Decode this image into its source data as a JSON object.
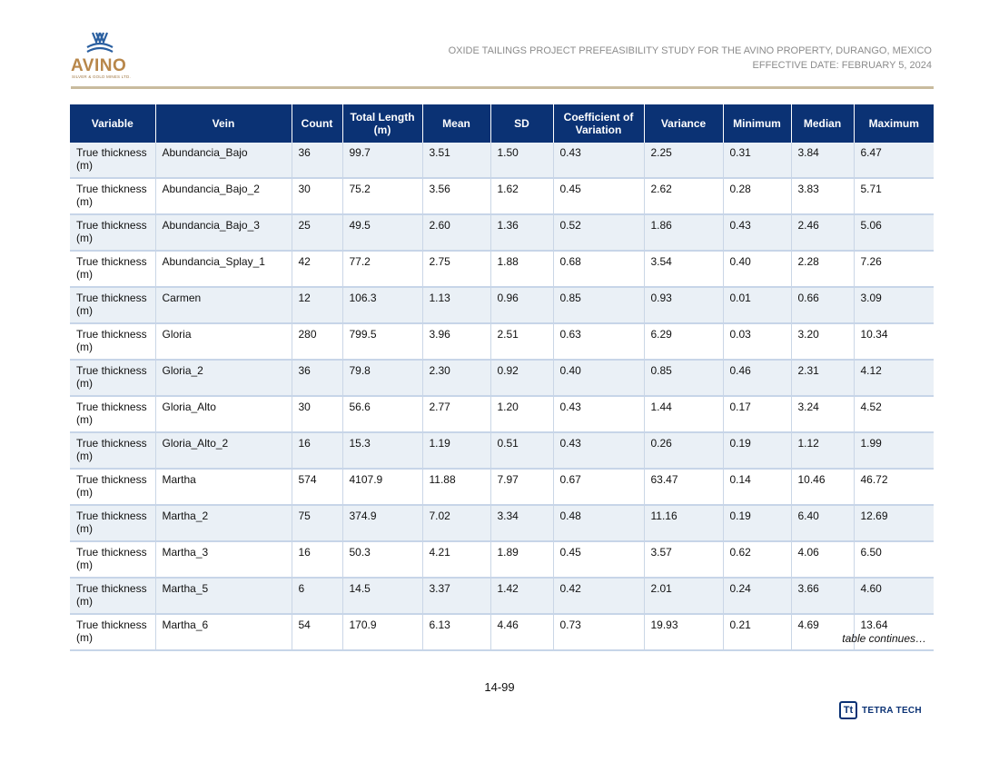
{
  "logo": {
    "name": "AVINO",
    "tagline": "SILVER & GOLD MINES LTD."
  },
  "header": {
    "line1": "OXIDE TAILINGS PROJECT PREFEASIBILITY STUDY FOR THE AVINO PROPERTY, DURANGO, MEXICO",
    "line2": "EFFECTIVE DATE: FEBRUARY 5, 2024"
  },
  "table": {
    "columns": [
      "Variable",
      "Vein",
      "Count",
      "Total Length (m)",
      "Mean",
      "SD",
      "Coefficient of Variation",
      "Variance",
      "Minimum",
      "Median",
      "Maximum"
    ],
    "rows": [
      [
        "True thickness (m)",
        "Abundancia_Bajo",
        "36",
        "99.7",
        "3.51",
        "1.50",
        "0.43",
        "2.25",
        "0.31",
        "3.84",
        "6.47"
      ],
      [
        "True thickness (m)",
        "Abundancia_Bajo_2",
        "30",
        "75.2",
        "3.56",
        "1.62",
        "0.45",
        "2.62",
        "0.28",
        "3.83",
        "5.71"
      ],
      [
        "True thickness (m)",
        "Abundancia_Bajo_3",
        "25",
        "49.5",
        "2.60",
        "1.36",
        "0.52",
        "1.86",
        "0.43",
        "2.46",
        "5.06"
      ],
      [
        "True thickness (m)",
        "Abundancia_Splay_1",
        "42",
        "77.2",
        "2.75",
        "1.88",
        "0.68",
        "3.54",
        "0.40",
        "2.28",
        "7.26"
      ],
      [
        "True thickness (m)",
        "Carmen",
        "12",
        "106.3",
        "1.13",
        "0.96",
        "0.85",
        "0.93",
        "0.01",
        "0.66",
        "3.09"
      ],
      [
        "True thickness (m)",
        "Gloria",
        "280",
        "799.5",
        "3.96",
        "2.51",
        "0.63",
        "6.29",
        "0.03",
        "3.20",
        "10.34"
      ],
      [
        "True thickness (m)",
        "Gloria_2",
        "36",
        "79.8",
        "2.30",
        "0.92",
        "0.40",
        "0.85",
        "0.46",
        "2.31",
        "4.12"
      ],
      [
        "True thickness (m)",
        "Gloria_Alto",
        "30",
        "56.6",
        "2.77",
        "1.20",
        "0.43",
        "1.44",
        "0.17",
        "3.24",
        "4.52"
      ],
      [
        "True thickness (m)",
        "Gloria_Alto_2",
        "16",
        "15.3",
        "1.19",
        "0.51",
        "0.43",
        "0.26",
        "0.19",
        "1.12",
        "1.99"
      ],
      [
        "True thickness (m)",
        "Martha",
        "574",
        "4107.9",
        "11.88",
        "7.97",
        "0.67",
        "63.47",
        "0.14",
        "10.46",
        "46.72"
      ],
      [
        "True thickness (m)",
        "Martha_2",
        "75",
        "374.9",
        "7.02",
        "3.34",
        "0.48",
        "11.16",
        "0.19",
        "6.40",
        "12.69"
      ],
      [
        "True thickness (m)",
        "Martha_3",
        "16",
        "50.3",
        "4.21",
        "1.89",
        "0.45",
        "3.57",
        "0.62",
        "4.06",
        "6.50"
      ],
      [
        "True thickness (m)",
        "Martha_5",
        "6",
        "14.5",
        "3.37",
        "1.42",
        "0.42",
        "2.01",
        "0.24",
        "3.66",
        "4.60"
      ],
      [
        "True thickness (m)",
        "Martha_6",
        "54",
        "170.9",
        "6.13",
        "4.46",
        "0.73",
        "19.93",
        "0.21",
        "4.69",
        "13.64"
      ]
    ]
  },
  "footer": {
    "continues": "table continues…",
    "page_number": "14-99",
    "brand_mark": "Tt",
    "brand_name": "TETRA TECH"
  },
  "colors": {
    "header_bg": "#0b3274",
    "row_alt": "#eaf0f6",
    "logo_gold": "#b8874a",
    "logo_blue": "#2a5fa0"
  }
}
